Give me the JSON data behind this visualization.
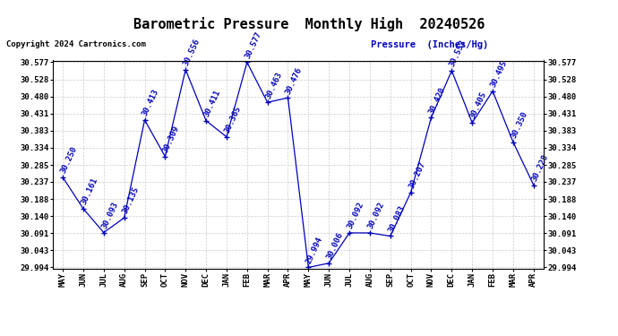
{
  "title": "Barometric Pressure  Monthly High  20240526",
  "copyright": "Copyright 2024 Cartronics.com",
  "ylabel": "Pressure  (Inches/Hg)",
  "months": [
    "MAY",
    "JUN",
    "JUL",
    "AUG",
    "SEP",
    "OCT",
    "NOV",
    "DEC",
    "JAN",
    "FEB",
    "MAR",
    "APR",
    "MAY",
    "JUN",
    "JUL",
    "AUG",
    "SEP",
    "OCT",
    "NOV",
    "DEC",
    "JAN",
    "FEB",
    "MAR",
    "APR"
  ],
  "values": [
    30.25,
    30.161,
    30.093,
    30.135,
    30.413,
    30.309,
    30.556,
    30.411,
    30.365,
    30.577,
    30.463,
    30.476,
    29.994,
    30.006,
    30.092,
    30.092,
    30.083,
    30.207,
    30.42,
    30.553,
    30.405,
    30.495,
    30.35,
    30.228
  ],
  "line_color": "#0000bb",
  "marker": "+",
  "marker_color": "#0000bb",
  "label_color": "#0000bb",
  "grid_color": "#cccccc",
  "bg_color": "#ffffff",
  "title_color": "#000000",
  "ylim_min": 29.99,
  "ylim_max": 30.582,
  "yticks": [
    29.994,
    30.043,
    30.091,
    30.14,
    30.188,
    30.237,
    30.285,
    30.334,
    30.383,
    30.431,
    30.48,
    30.528,
    30.577
  ],
  "title_fontsize": 11,
  "label_fontsize": 6.5,
  "axis_fontsize": 6.5,
  "copyright_fontsize": 6.5,
  "ylabel_fontsize": 7.5
}
